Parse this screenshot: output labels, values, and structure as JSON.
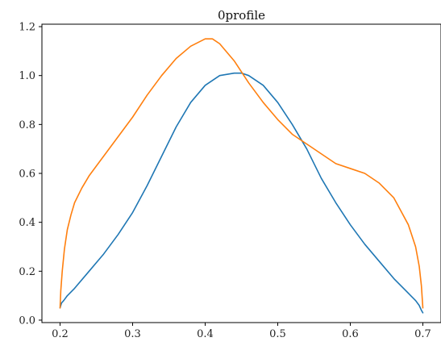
{
  "chart_data": {
    "type": "line",
    "title": "0profile",
    "xlabel": "",
    "ylabel": "",
    "xlim": [
      0.175,
      0.725
    ],
    "ylim": [
      -0.01,
      1.21
    ],
    "xticks": [
      0.2,
      0.3,
      0.4,
      0.5,
      0.6,
      0.7
    ],
    "xtick_labels": [
      "0.2",
      "0.3",
      "0.4",
      "0.5",
      "0.6",
      "0.7"
    ],
    "yticks": [
      0.0,
      0.2,
      0.4,
      0.6,
      0.8,
      1.0,
      1.2
    ],
    "ytick_labels": [
      "0.0",
      "0.2",
      "0.4",
      "0.6",
      "0.8",
      "1.0",
      "1.2"
    ],
    "grid": false,
    "series": [
      {
        "color": "#1f77b4",
        "x": [
          0.2,
          0.202,
          0.205,
          0.21,
          0.22,
          0.24,
          0.26,
          0.28,
          0.3,
          0.32,
          0.34,
          0.36,
          0.38,
          0.4,
          0.42,
          0.44,
          0.45,
          0.46,
          0.48,
          0.5,
          0.52,
          0.54,
          0.56,
          0.58,
          0.6,
          0.62,
          0.64,
          0.66,
          0.68,
          0.69,
          0.695,
          0.698,
          0.7
        ],
        "y": [
          0.05,
          0.07,
          0.08,
          0.1,
          0.13,
          0.2,
          0.27,
          0.35,
          0.44,
          0.55,
          0.67,
          0.79,
          0.89,
          0.96,
          1.0,
          1.01,
          1.01,
          1.0,
          0.96,
          0.89,
          0.8,
          0.7,
          0.58,
          0.48,
          0.39,
          0.31,
          0.24,
          0.17,
          0.11,
          0.08,
          0.06,
          0.04,
          0.03
        ]
      },
      {
        "color": "#ff7f0e",
        "x": [
          0.2,
          0.201,
          0.203,
          0.206,
          0.21,
          0.215,
          0.22,
          0.23,
          0.24,
          0.26,
          0.28,
          0.3,
          0.32,
          0.34,
          0.36,
          0.38,
          0.4,
          0.41,
          0.42,
          0.44,
          0.46,
          0.48,
          0.5,
          0.52,
          0.54,
          0.56,
          0.58,
          0.6,
          0.62,
          0.64,
          0.66,
          0.68,
          0.69,
          0.695,
          0.698,
          0.7
        ],
        "y": [
          0.05,
          0.12,
          0.2,
          0.29,
          0.37,
          0.43,
          0.48,
          0.54,
          0.59,
          0.67,
          0.75,
          0.83,
          0.92,
          1.0,
          1.07,
          1.12,
          1.15,
          1.15,
          1.13,
          1.06,
          0.97,
          0.89,
          0.82,
          0.76,
          0.72,
          0.68,
          0.64,
          0.62,
          0.6,
          0.56,
          0.5,
          0.39,
          0.3,
          0.22,
          0.14,
          0.05
        ]
      }
    ]
  }
}
